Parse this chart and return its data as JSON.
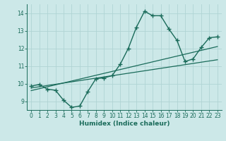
{
  "xlabel": "Humidex (Indice chaleur)",
  "bg_color": "#cce8e8",
  "grid_color": "#b0d4d4",
  "line_color": "#1a6b5a",
  "xlim": [
    -0.5,
    23.5
  ],
  "ylim": [
    8.5,
    14.5
  ],
  "xticks": [
    0,
    1,
    2,
    3,
    4,
    5,
    6,
    7,
    8,
    9,
    10,
    11,
    12,
    13,
    14,
    15,
    16,
    17,
    18,
    19,
    20,
    21,
    22,
    23
  ],
  "yticks": [
    9,
    10,
    11,
    12,
    13,
    14
  ],
  "line1_x": [
    0,
    1,
    2,
    3,
    4,
    5,
    6,
    7,
    8,
    9,
    10,
    11,
    12,
    13,
    14,
    15,
    16,
    17,
    18,
    19,
    20,
    21,
    22,
    23
  ],
  "line1_y": [
    9.85,
    9.95,
    9.68,
    9.62,
    9.05,
    8.65,
    8.72,
    9.55,
    10.28,
    10.32,
    10.45,
    11.1,
    12.0,
    13.2,
    14.1,
    13.85,
    13.85,
    13.1,
    12.45,
    11.25,
    11.4,
    12.05,
    12.6,
    12.65
  ],
  "line2_x": [
    0,
    23
  ],
  "line2_y": [
    9.75,
    11.35
  ],
  "line3_x": [
    0,
    23
  ],
  "line3_y": [
    9.6,
    12.1
  ]
}
